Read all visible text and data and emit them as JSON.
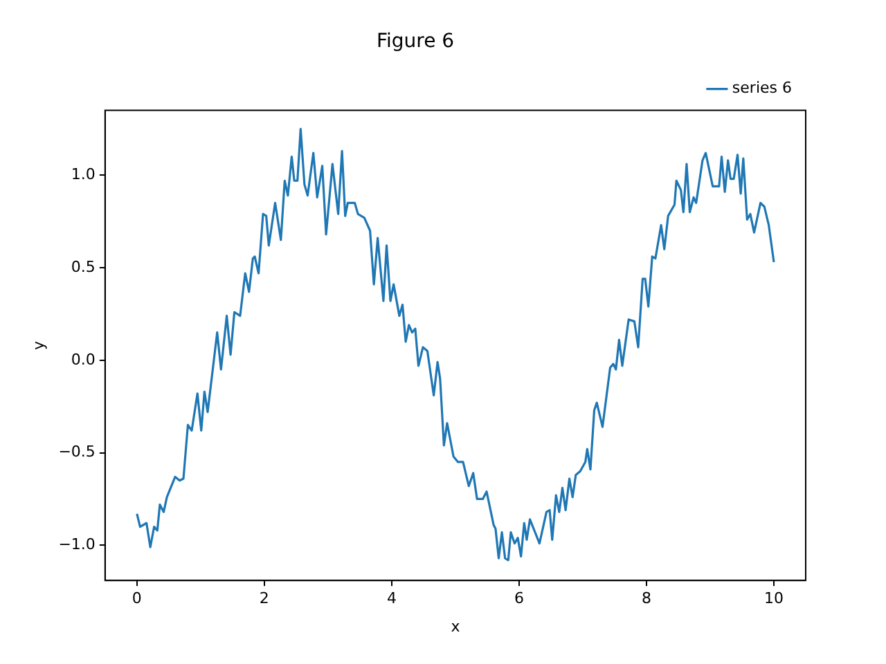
{
  "chart_data": {
    "type": "line",
    "title": "Figure 6",
    "xlabel": "x",
    "ylabel": "y",
    "xlim": [
      -0.5,
      10.5
    ],
    "ylim": [
      -1.19,
      1.35
    ],
    "xticks": [
      0,
      2,
      4,
      6,
      8,
      10
    ],
    "yticks": [
      {
        "value": -1,
        "label": "−1.0"
      },
      {
        "value": -0.5,
        "label": "−0.5"
      },
      {
        "value": 0,
        "label": "0.0"
      },
      {
        "value": 0.5,
        "label": "0.5"
      },
      {
        "value": 1,
        "label": "1.0"
      }
    ],
    "grid": false,
    "legend": "top right",
    "marker": "none",
    "line_style": "solid",
    "series": [
      {
        "name": "series 6",
        "color": "#1f77b4",
        "x": [
          0,
          0.05,
          0.15,
          0.21,
          0.27,
          0.32,
          0.36,
          0.42,
          0.47,
          0.6,
          0.67,
          0.73,
          0.8,
          0.86,
          0.95,
          1.01,
          1.06,
          1.11,
          1.26,
          1.32,
          1.41,
          1.47,
          1.53,
          1.62,
          1.7,
          1.76,
          1.82,
          1.85,
          1.91,
          1.98,
          2.03,
          2.07,
          2.17,
          2.26,
          2.32,
          2.37,
          2.43,
          2.47,
          2.52,
          2.57,
          2.63,
          2.68,
          2.77,
          2.83,
          2.91,
          2.97,
          3.07,
          3.16,
          3.22,
          3.27,
          3.31,
          3.42,
          3.47,
          3.57,
          3.66,
          3.72,
          3.78,
          3.87,
          3.92,
          3.98,
          4.03,
          4.12,
          4.17,
          4.22,
          4.27,
          4.32,
          4.37,
          4.42,
          4.49,
          4.56,
          4.66,
          4.72,
          4.76,
          4.82,
          4.87,
          4.97,
          5.04,
          5.12,
          5.21,
          5.28,
          5.34,
          5.43,
          5.49,
          5.6,
          5.63,
          5.68,
          5.73,
          5.78,
          5.83,
          5.87,
          5.93,
          5.98,
          6.03,
          6.08,
          6.12,
          6.17,
          6.32,
          6.43,
          6.48,
          6.52,
          6.58,
          6.63,
          6.68,
          6.73,
          6.79,
          6.84,
          6.89,
          6.96,
          7.04,
          7.07,
          7.12,
          7.18,
          7.22,
          7.31,
          7.43,
          7.48,
          7.52,
          7.57,
          7.62,
          7.72,
          7.81,
          7.87,
          7.94,
          7.98,
          8.03,
          8.09,
          8.14,
          8.23,
          8.28,
          8.34,
          8.44,
          8.47,
          8.54,
          8.58,
          8.63,
          8.68,
          8.74,
          8.78,
          8.88,
          8.93,
          9.04,
          9.14,
          9.18,
          9.23,
          9.28,
          9.32,
          9.37,
          9.43,
          9.48,
          9.52,
          9.58,
          9.63,
          9.69,
          9.79,
          9.85,
          9.92,
          10
        ],
        "values": [
          -0.83,
          -0.9,
          -0.88,
          -1.01,
          -0.9,
          -0.92,
          -0.78,
          -0.82,
          -0.74,
          -0.63,
          -0.65,
          -0.64,
          -0.35,
          -0.38,
          -0.18,
          -0.38,
          -0.17,
          -0.28,
          0.15,
          -0.05,
          0.24,
          0.03,
          0.26,
          0.24,
          0.47,
          0.37,
          0.55,
          0.56,
          0.47,
          0.79,
          0.78,
          0.62,
          0.85,
          0.65,
          0.97,
          0.89,
          1.1,
          0.97,
          0.97,
          1.25,
          0.95,
          0.89,
          1.12,
          0.88,
          1.05,
          0.68,
          1.06,
          0.79,
          1.13,
          0.78,
          0.85,
          0.85,
          0.79,
          0.77,
          0.7,
          0.41,
          0.66,
          0.32,
          0.62,
          0.32,
          0.41,
          0.24,
          0.3,
          0.1,
          0.19,
          0.15,
          0.17,
          -0.03,
          0.07,
          0.05,
          -0.19,
          -0.01,
          -0.1,
          -0.46,
          -0.34,
          -0.52,
          -0.55,
          -0.55,
          -0.68,
          -0.61,
          -0.75,
          -0.75,
          -0.71,
          -0.89,
          -0.91,
          -1.07,
          -0.93,
          -1.07,
          -1.08,
          -0.93,
          -0.99,
          -0.96,
          -1.06,
          -0.88,
          -0.97,
          -0.86,
          -0.99,
          -0.82,
          -0.81,
          -0.97,
          -0.73,
          -0.82,
          -0.69,
          -0.81,
          -0.64,
          -0.74,
          -0.62,
          -0.6,
          -0.55,
          -0.48,
          -0.59,
          -0.27,
          -0.23,
          -0.36,
          -0.04,
          -0.02,
          -0.05,
          0.11,
          -0.03,
          0.22,
          0.21,
          0.07,
          0.44,
          0.44,
          0.29,
          0.56,
          0.55,
          0.73,
          0.6,
          0.78,
          0.84,
          0.97,
          0.92,
          0.8,
          1.06,
          0.8,
          0.88,
          0.85,
          1.08,
          1.12,
          0.94,
          0.94,
          1.1,
          0.91,
          1.08,
          0.98,
          0.98,
          1.11,
          0.9,
          1.09,
          0.76,
          0.79,
          0.69,
          0.85,
          0.83,
          0.73,
          0.53
        ]
      }
    ]
  }
}
